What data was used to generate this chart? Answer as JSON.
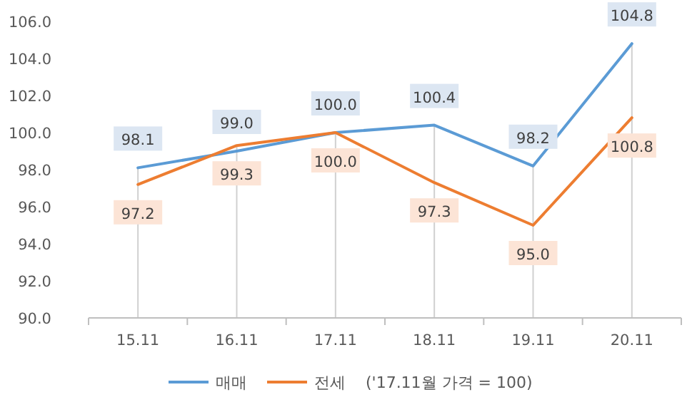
{
  "chart_data": {
    "type": "line",
    "categories": [
      "15.11",
      "16.11",
      "17.11",
      "18.11",
      "19.11",
      "20.11"
    ],
    "series": [
      {
        "name": "매매",
        "color": "#5b9bd5",
        "values": [
          98.1,
          99.0,
          100.0,
          100.4,
          98.2,
          104.8
        ],
        "value_labels": [
          "98.1",
          "99.0",
          "100.0",
          "100.4",
          "98.2",
          "104.8"
        ]
      },
      {
        "name": "전세",
        "color": "#ed7d31",
        "values": [
          97.2,
          99.3,
          100.0,
          97.3,
          95.0,
          100.8
        ],
        "value_labels": [
          "97.2",
          "99.3",
          "100.0",
          "97.3",
          "95.0",
          "100.8"
        ]
      }
    ],
    "ylim": [
      90,
      106
    ],
    "yticks": [
      {
        "value": 90,
        "label": "90.0"
      },
      {
        "value": 92,
        "label": "92.0"
      },
      {
        "value": 94,
        "label": "94.0"
      },
      {
        "value": 96,
        "label": "96.0"
      },
      {
        "value": 98,
        "label": "98.0"
      },
      {
        "value": 100,
        "label": "100.0"
      },
      {
        "value": 102,
        "label": "102.0"
      },
      {
        "value": 104,
        "label": "104.0"
      },
      {
        "value": 106,
        "label": "106.0"
      }
    ],
    "grid": "x",
    "legend": "bottom",
    "marker": "none",
    "line_style": "solid",
    "annotations": [
      "('17.11월 가격 = 100)"
    ]
  }
}
